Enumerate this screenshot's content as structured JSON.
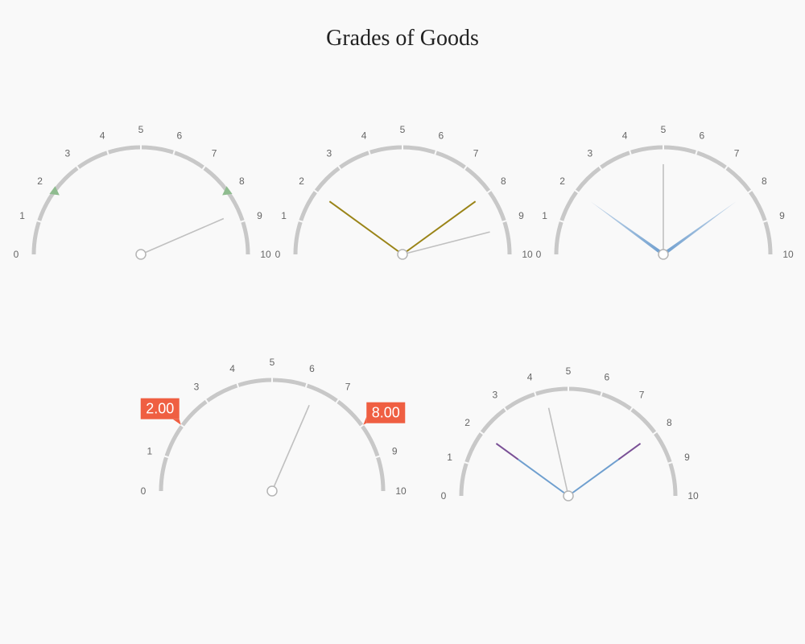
{
  "chart_data": {
    "type": "gauge",
    "title": "Grades of Goods",
    "scale": {
      "min": 0,
      "max": 10,
      "ticks": [
        "0",
        "1",
        "2",
        "3",
        "4",
        "5",
        "6",
        "7",
        "8",
        "9",
        "10"
      ]
    },
    "colors": {
      "arc": "#c8c8c8",
      "needle": "#c0c0c0",
      "marker": "#8fbc8f",
      "olive": "#9a8417",
      "blue": "#6f9fcf",
      "purple": "#7a5096",
      "badge": "#ef5f42"
    },
    "gauges": [
      {
        "needle": 8.7,
        "markers": [
          2,
          8
        ],
        "lines": [],
        "labels": []
      },
      {
        "needle": 9.2,
        "markers": [],
        "lines": [
          {
            "value": 2,
            "style": "olive"
          },
          {
            "value": 8,
            "style": "olive"
          }
        ],
        "labels": []
      },
      {
        "needle": 5,
        "markers": [],
        "lines": [
          {
            "value": 2,
            "style": "blue-fade"
          },
          {
            "value": 8,
            "style": "blue-fade"
          }
        ],
        "labels": []
      },
      {
        "needle": 6.3,
        "markers": [],
        "lines": [],
        "labels": [
          {
            "value": 2,
            "text": "2.00"
          },
          {
            "value": 8,
            "text": "8.00"
          }
        ]
      },
      {
        "needle": 4.3,
        "markers": [],
        "lines": [
          {
            "value": 2,
            "style": "purple-blue"
          },
          {
            "value": 8,
            "style": "purple-blue"
          }
        ],
        "labels": []
      }
    ]
  }
}
